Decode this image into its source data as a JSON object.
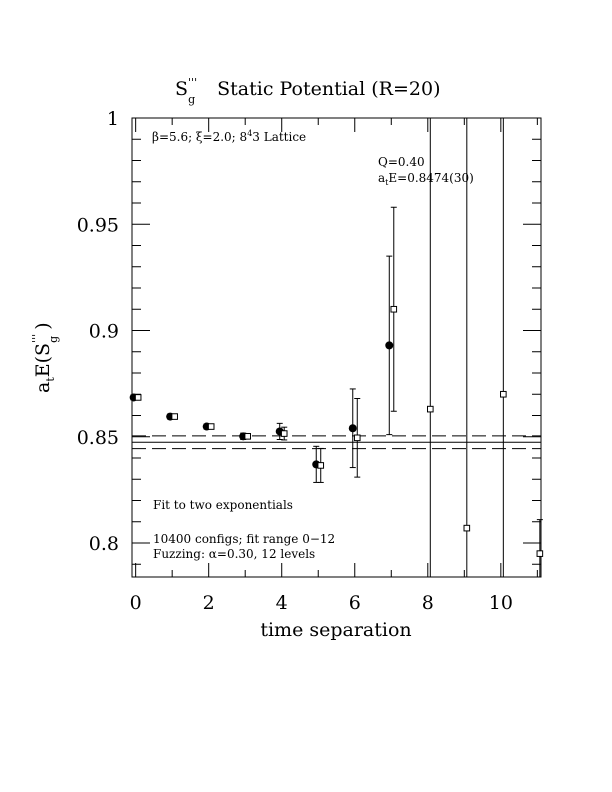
{
  "chart_data": {
    "type": "scatter",
    "title": {
      "symbol": "S",
      "superscript": "'''",
      "subscript": "g",
      "text": "Static Potential (R=20)"
    },
    "xlabel": "time separation",
    "ylabel": {
      "prefix": "a",
      "prefix_sub": "t",
      "main": "E(S",
      "sup": "'''",
      "sub": "g",
      "suffix": " )"
    },
    "xlim": [
      -0.1,
      11.1
    ],
    "ylim": [
      0.784,
      1.0
    ],
    "x_ticks": [
      0,
      2,
      4,
      6,
      8,
      10
    ],
    "x_tick_labels": [
      "0",
      "2",
      "4",
      "6",
      "8",
      "10"
    ],
    "y_ticks": [
      0.8,
      0.85,
      0.9,
      0.95,
      1.0
    ],
    "y_tick_labels": [
      "0.8",
      "0.85",
      "0.9",
      "0.95",
      "1"
    ],
    "grid": false,
    "annotations": {
      "lattice": "β=5.6; ξ=2.0; 8⁴3 Lattice",
      "lattice_parts": {
        "pre": "β=5.6; ξ=2.0; 8",
        "sup": "4",
        "post": "3 Lattice"
      },
      "q_value": "Q=0.40",
      "fit_energy": {
        "prefix": "a",
        "sub": "t",
        "rest": "E=0.8474(30)"
      },
      "fit_method": "Fit to two exponentials",
      "configs": "10400 configs; fit range 0−12",
      "fuzzing": "Fuzzing: α=0.30, 12 levels"
    },
    "fit": {
      "value": 0.8474,
      "error": 0.003,
      "x_range": [
        -0.1,
        11.1
      ]
    },
    "series": [
      {
        "marker": "filled-circle",
        "points": [
          {
            "x": 0,
            "y": 0.8685,
            "err": 0.0012
          },
          {
            "x": 1,
            "y": 0.8595,
            "err": 0.0012
          },
          {
            "x": 2,
            "y": 0.8548,
            "err": 0.0012
          },
          {
            "x": 3,
            "y": 0.8502,
            "err": 0.0015
          },
          {
            "x": 4,
            "y": 0.8525,
            "err": 0.0038
          },
          {
            "x": 5,
            "y": 0.837,
            "err": 0.0085
          },
          {
            "x": 6,
            "y": 0.854,
            "err": 0.0185
          },
          {
            "x": 7,
            "y": 0.893,
            "err": 0.042
          }
        ]
      },
      {
        "marker": "open-square",
        "points": [
          {
            "x": 0,
            "y": 0.8685,
            "err": 0.001
          },
          {
            "x": 1,
            "y": 0.8595,
            "err": 0.001
          },
          {
            "x": 2,
            "y": 0.8548,
            "err": 0.001
          },
          {
            "x": 3,
            "y": 0.8502,
            "err": 0.0012
          },
          {
            "x": 4,
            "y": 0.8515,
            "err": 0.003
          },
          {
            "x": 5,
            "y": 0.8365,
            "err": 0.008
          },
          {
            "x": 6,
            "y": 0.8495,
            "err": 0.0185
          },
          {
            "x": 7,
            "y": 0.91,
            "err": 0.048
          },
          {
            "x": 8,
            "y": 0.863,
            "err": 0.2
          },
          {
            "x": 9,
            "y": 0.807,
            "err": 0.24
          },
          {
            "x": 10,
            "y": 0.87,
            "err": 0.25
          },
          {
            "x": 11,
            "y": 0.795,
            "err": 0.016
          }
        ]
      }
    ]
  }
}
